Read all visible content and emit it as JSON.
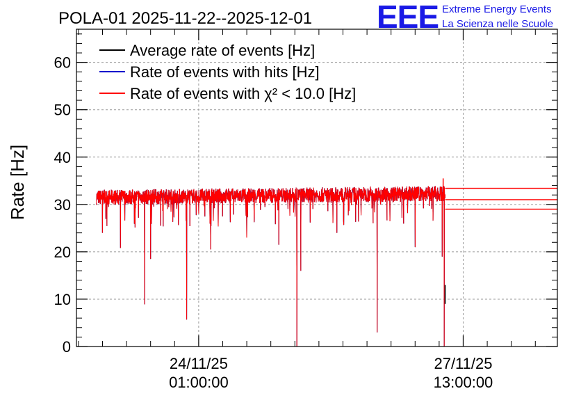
{
  "chart_data": {
    "type": "line",
    "title": "POLA-01 2025-11-22--2025-12-01",
    "ylabel": "Rate [Hz]",
    "xlabel": "",
    "ylim": [
      0,
      67
    ],
    "xlim_hours": [
      0,
      240
    ],
    "y_ticks": [
      0,
      10,
      20,
      30,
      40,
      50,
      60
    ],
    "y_tick_labels": [
      "0",
      "10",
      "20",
      "30",
      "40",
      "50",
      "60"
    ],
    "x_ticks_labeled": [
      {
        "hour": 61,
        "date": "24/11/25",
        "time": "01:00:00"
      },
      {
        "hour": 193,
        "date": "27/11/25",
        "time": "13:00:00"
      }
    ],
    "grid": true,
    "legend_position": "top-left",
    "series": [
      {
        "name": "Average rate of events [Hz]",
        "color": "#000000",
        "mean": 31.8
      },
      {
        "name": "Rate of events with hits [Hz]",
        "color": "#0000cc",
        "mean": 31.8
      },
      {
        "name": "Rate of events with χ² < 10.0 [Hz]",
        "color": "#ff0000",
        "mean": 31.8
      }
    ],
    "base_level_start": 31.5,
    "base_level_end": 32.3,
    "data_start_hour": 10,
    "data_end_hour": 184,
    "dips": [
      {
        "hour": 13.0,
        "value": 24.0
      },
      {
        "hour": 22.0,
        "value": 20.8
      },
      {
        "hour": 34.0,
        "value": 8.9
      },
      {
        "hour": 37.0,
        "value": 18.5
      },
      {
        "hour": 42.0,
        "value": 25.5
      },
      {
        "hour": 55.0,
        "value": 5.7
      },
      {
        "hour": 67.0,
        "value": 20.5
      },
      {
        "hour": 85.0,
        "value": 23.0
      },
      {
        "hour": 101.0,
        "value": 21.5
      },
      {
        "hour": 110.0,
        "value": 0.0
      },
      {
        "hour": 112.0,
        "value": 16.0
      },
      {
        "hour": 130.0,
        "value": 24.0
      },
      {
        "hour": 150.0,
        "value": 3.0
      },
      {
        "hour": 169.0,
        "value": 21.0
      },
      {
        "hour": 182.5,
        "value": 19.0
      },
      {
        "hour": 183.5,
        "value": 0.0
      }
    ],
    "tail_lines": [
      33.4,
      31.0,
      29.0
    ],
    "spike_above": {
      "hour": 183,
      "value": 35.5
    }
  },
  "logo": {
    "mark": "EEE",
    "line1": "Extreme Energy Events",
    "line2": "La Scienza nelle Scuole"
  },
  "colors": {
    "logo": "#1a1ae6",
    "grid": "#9a9a9a"
  }
}
